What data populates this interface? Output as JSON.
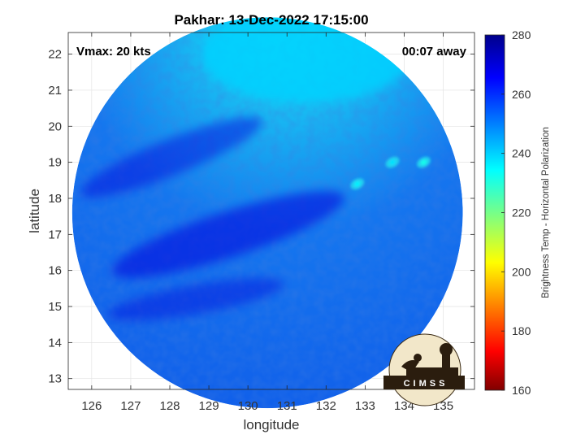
{
  "chart_data": {
    "type": "heatmap",
    "title": "Pakhar: 13-Dec-2022 17:15:00",
    "xlabel": "longitude",
    "ylabel": "latitude",
    "xlim": [
      125.4,
      135.8
    ],
    "ylim": [
      12.7,
      22.6
    ],
    "xticks": [
      "126",
      "127",
      "128",
      "129",
      "130",
      "131",
      "132",
      "133",
      "134",
      "135"
    ],
    "yticks": [
      "13",
      "14",
      "15",
      "16",
      "17",
      "18",
      "19",
      "20",
      "21",
      "22"
    ],
    "grid": true,
    "annotation_left": "Vmax: 20 kts",
    "annotation_right": "00:07 away",
    "colorbar": {
      "label": "Brightness Temp - Horizontal Polarization",
      "range": [
        160,
        280
      ],
      "ticks": [
        "160",
        "180",
        "200",
        "220",
        "240",
        "260",
        "280"
      ],
      "colormap": "jet"
    },
    "swath": {
      "shape": "circle",
      "center": [
        130.5,
        17.6
      ],
      "radius_deg": 5.0
    },
    "features": [
      {
        "kind": "warm-region",
        "lon": 129.5,
        "lat": 17.0,
        "value": 270
      },
      {
        "kind": "cold-region",
        "lon": 131.5,
        "lat": 22.0,
        "value": 240
      },
      {
        "kind": "cold-spot",
        "lon": 132.8,
        "lat": 18.4,
        "value": 236
      },
      {
        "kind": "cold-spot",
        "lon": 133.7,
        "lat": 19.0,
        "value": 238
      },
      {
        "kind": "cold-spot",
        "lon": 134.5,
        "lat": 19.0,
        "value": 232
      }
    ]
  },
  "logo": {
    "text": "CIMSS"
  }
}
